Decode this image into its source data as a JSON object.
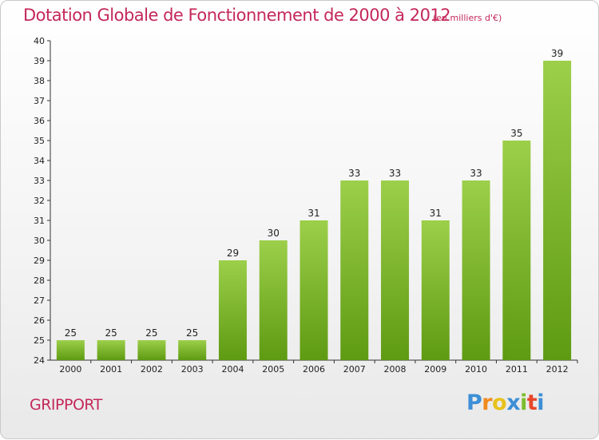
{
  "title": "Dotation Globale de Fonctionnement de 2000 à 2012",
  "unit_note": "(en milliers d'€)",
  "commune": "GRIPPORT",
  "logo": {
    "letters": [
      "P",
      "r",
      "o",
      "x",
      "i",
      "t",
      "i"
    ],
    "colors": [
      "#3d8fd6",
      "#f08a1c",
      "#e8c21c",
      "#3d8fd6",
      "#7cbd2c",
      "#e8462a",
      "#3d8fd6"
    ]
  },
  "colors": {
    "bar_top": "#9ccf4a",
    "bar_bottom": "#5e9a12",
    "title": "#c4285a"
  },
  "chart_data": {
    "type": "bar",
    "categories": [
      "2000",
      "2001",
      "2002",
      "2003",
      "2004",
      "2005",
      "2006",
      "2007",
      "2008",
      "2009",
      "2010",
      "2011",
      "2012"
    ],
    "values": [
      25,
      25,
      25,
      25,
      29,
      30,
      31,
      33,
      33,
      31,
      33,
      35,
      39
    ],
    "ylim": [
      24,
      40
    ],
    "yticks": [
      24,
      25,
      26,
      27,
      28,
      29,
      30,
      31,
      32,
      33,
      34,
      35,
      36,
      37,
      38,
      39,
      40
    ],
    "grid": false,
    "title": "Dotation Globale de Fonctionnement de 2000 à 2012"
  }
}
